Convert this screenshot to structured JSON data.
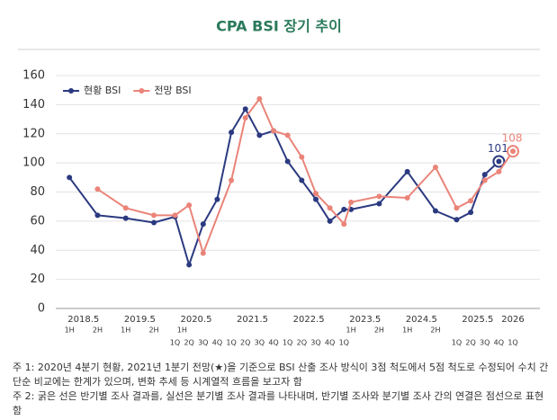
{
  "chart_data": {
    "type": "line",
    "title": "CPA BSI 장기 추이",
    "ylim": [
      0,
      160
    ],
    "yticks": [
      0,
      20,
      40,
      60,
      80,
      100,
      120,
      140,
      160
    ],
    "xlim": [
      2018,
      2026.5
    ],
    "year_ticks": [
      2018.5,
      2019.5,
      2020.5,
      2021.5,
      2022.5,
      2023.5,
      2024.5,
      2025.5,
      {
        "value": 2026.125,
        "label": "2026"
      }
    ],
    "xticks_half": [
      {
        "value": 2018.25,
        "label": "1H"
      },
      {
        "value": 2018.75,
        "label": "2H"
      },
      {
        "value": 2019.25,
        "label": "1H"
      },
      {
        "value": 2019.75,
        "label": "2H"
      },
      {
        "value": 2020.25,
        "label": "1H"
      },
      {
        "value": 2023.25,
        "label": "1H"
      },
      {
        "value": 2023.75,
        "label": "2H"
      },
      {
        "value": 2024.25,
        "label": "1H"
      },
      {
        "value": 2024.75,
        "label": "2H"
      }
    ],
    "xticks_quarter": [
      {
        "value": 2020.125,
        "label": "1Q"
      },
      {
        "value": 2020.375,
        "label": "2Q"
      },
      {
        "value": 2020.625,
        "label": "3Q"
      },
      {
        "value": 2020.875,
        "label": "4Q"
      },
      {
        "value": 2021.125,
        "label": "1Q"
      },
      {
        "value": 2021.375,
        "label": "2Q"
      },
      {
        "value": 2021.625,
        "label": "3Q"
      },
      {
        "value": 2021.875,
        "label": "4Q"
      },
      {
        "value": 2022.125,
        "label": "1Q"
      },
      {
        "value": 2022.375,
        "label": "2Q"
      },
      {
        "value": 2022.625,
        "label": "3Q"
      },
      {
        "value": 2022.875,
        "label": "4Q"
      },
      {
        "value": 2023.125,
        "label": "1Q"
      },
      {
        "value": 2025.125,
        "label": "1Q"
      },
      {
        "value": 2025.375,
        "label": "2Q"
      },
      {
        "value": 2025.625,
        "label": "3Q"
      },
      {
        "value": 2025.875,
        "label": "4Q"
      },
      {
        "value": 2026.125,
        "label": "1Q"
      }
    ],
    "grid": true,
    "legend": "top-left",
    "label_last": true,
    "series": [
      {
        "name": "현황 BSI",
        "color": "#2b3a80",
        "x": [
          2018.25,
          2018.75,
          2019.25,
          2019.75,
          2020.125,
          2020.375,
          2020.625,
          2020.875,
          2021.125,
          2021.375,
          2021.625,
          2021.875,
          2022.125,
          2022.375,
          2022.625,
          2022.875,
          2023.125,
          2023.25,
          2023.75,
          2024.25,
          2024.75,
          2025.125,
          2025.375,
          2025.625,
          2025.875
        ],
        "values": [
          90,
          64,
          62,
          59,
          63,
          30,
          58,
          75,
          121,
          137,
          119,
          122,
          101,
          88,
          75,
          60,
          68,
          68,
          72,
          94,
          67,
          61,
          66,
          92,
          101
        ]
      },
      {
        "name": "전망 BSI",
        "color": "#ea8479",
        "x": [
          2018.75,
          2019.25,
          2019.75,
          2020.125,
          2020.375,
          2020.625,
          2021.125,
          2021.375,
          2021.625,
          2021.875,
          2022.125,
          2022.375,
          2022.625,
          2022.875,
          2023.125,
          2023.25,
          2023.75,
          2024.25,
          2024.75,
          2025.125,
          2025.375,
          2025.625,
          2025.875,
          2026.125
        ],
        "values": [
          82,
          69,
          64,
          64,
          71,
          38,
          88,
          131,
          144,
          122,
          119,
          104,
          79,
          69,
          58,
          73,
          77,
          76,
          97,
          69,
          74,
          88,
          94,
          108
        ]
      }
    ],
    "notes": [
      "주 1: 2020년 4분기 현황, 2021년 1분기 전망(★)을 기준으로 BSI 산출 조사 방식이 3점 척도에서 5점 척도로 수정되어 수치 간 단순 비교에는 한계가 있으며, 변화 추세 등 시계열적 흐름을 보고자 함",
      "주 2: 굵은 선은 반기별 조사 결과를, 실선은 분기별 조사 결과를 나타내며, 반기별 조사와 분기별 조사 간의 연결은 점선으로 표현함"
    ]
  }
}
